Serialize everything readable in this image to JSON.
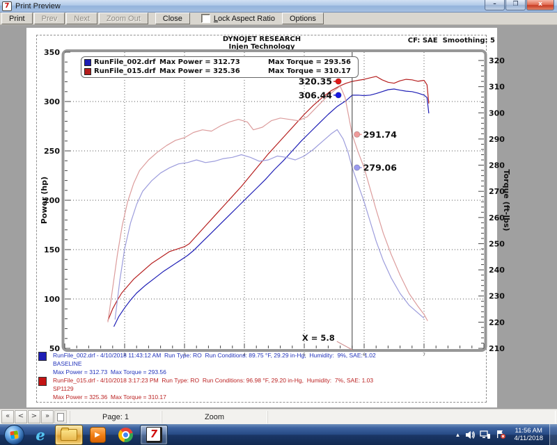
{
  "window": {
    "title": "Print Preview",
    "minimize": "–",
    "restore": "❐",
    "close": "x"
  },
  "toolbar": {
    "buttons": [
      {
        "label": "Print",
        "enabled": true
      },
      {
        "label": "Prev",
        "enabled": false
      },
      {
        "label": "Next",
        "enabled": false
      },
      {
        "label": "Zoom Out",
        "enabled": false
      },
      {
        "label": "Close",
        "enabled": true
      }
    ],
    "lock_label": "Lock Aspect Ratio",
    "lock_checked": false,
    "options_label": "Options"
  },
  "chart_data": {
    "type": "line",
    "title": "DYNOJET RESEARCH",
    "subtitle": "Injen Technology",
    "correction": "CF: SAE  Smoothing: 5",
    "x_axis": {
      "range": [
        1,
        8
      ],
      "gridlines": [
        2,
        3,
        4,
        5,
        6,
        7
      ],
      "tick_labels": [
        "2",
        "3",
        "4",
        "5",
        "6",
        "7"
      ],
      "minor_step": 0.2
    },
    "y_left": {
      "label": "Power (hp)",
      "range": [
        50,
        350
      ],
      "ticks": [
        350,
        300,
        250,
        200,
        150,
        100,
        50
      ],
      "grid": [
        300,
        250,
        200,
        150,
        100
      ],
      "minor_step": 10
    },
    "y_right": {
      "label": "Torque (ft-lbs)",
      "range": [
        210,
        320
      ],
      "ticks": [
        320,
        310,
        300,
        290,
        280,
        270,
        260,
        250,
        240,
        230,
        220,
        210
      ],
      "minor_step": 2
    },
    "legend": [
      {
        "color": "#1d1db5",
        "file": "RunFile_002.drf",
        "power": "Max Power = 312.73",
        "torque": "Max Torque = 293.56"
      },
      {
        "color": "#b51d1d",
        "file": "RunFile_015.drf",
        "power": "Max Power = 325.36",
        "torque": "Max Torque = 310.17"
      }
    ],
    "cursor": {
      "x": 5.8,
      "label": "X = 5.8"
    },
    "markers": [
      {
        "x": 5.57,
        "value": 320.35,
        "axis": "left",
        "color": "#e01818",
        "label": "320.35",
        "side": "left"
      },
      {
        "x": 5.57,
        "value": 306.44,
        "axis": "left",
        "color": "#1818e0",
        "label": "306.44",
        "side": "left"
      },
      {
        "x": 5.88,
        "value": 291.74,
        "axis": "right",
        "color": "#ef9a9a",
        "label": "291.74",
        "side": "right"
      },
      {
        "x": 5.88,
        "value": 279.06,
        "axis": "right",
        "color": "#9a9aef",
        "label": "279.06",
        "side": "right"
      }
    ],
    "series": [
      {
        "name": "RunFile_015 Power",
        "axis": "left",
        "color": "#b51d1d",
        "points": [
          [
            1.72,
            78
          ],
          [
            1.8,
            90
          ],
          [
            1.88,
            99
          ],
          [
            1.95,
            106
          ],
          [
            2.05,
            113
          ],
          [
            2.15,
            120
          ],
          [
            2.3,
            128
          ],
          [
            2.45,
            136
          ],
          [
            2.6,
            142
          ],
          [
            2.75,
            148
          ],
          [
            2.9,
            151
          ],
          [
            3.0,
            153
          ],
          [
            3.08,
            156
          ],
          [
            3.2,
            164
          ],
          [
            3.35,
            174
          ],
          [
            3.5,
            184
          ],
          [
            3.65,
            194
          ],
          [
            3.8,
            204
          ],
          [
            3.95,
            214
          ],
          [
            4.1,
            225
          ],
          [
            4.25,
            236
          ],
          [
            4.4,
            247
          ],
          [
            4.55,
            257
          ],
          [
            4.7,
            267
          ],
          [
            4.85,
            277
          ],
          [
            5.0,
            287
          ],
          [
            5.15,
            296
          ],
          [
            5.3,
            304
          ],
          [
            5.45,
            311
          ],
          [
            5.6,
            316
          ],
          [
            5.7,
            318.5
          ],
          [
            5.8,
            320.35
          ],
          [
            5.9,
            321.5
          ],
          [
            6.0,
            322.5
          ],
          [
            6.1,
            324
          ],
          [
            6.2,
            325.4
          ],
          [
            6.3,
            322
          ],
          [
            6.4,
            319.5
          ],
          [
            6.5,
            318.5
          ],
          [
            6.6,
            321
          ],
          [
            6.7,
            322.5
          ],
          [
            6.8,
            322
          ],
          [
            6.9,
            320.5
          ],
          [
            7.0,
            321.5
          ],
          [
            7.05,
            317
          ],
          [
            7.08,
            298
          ]
        ]
      },
      {
        "name": "RunFile_002 Power",
        "axis": "left",
        "color": "#1d1db5",
        "points": [
          [
            1.82,
            72
          ],
          [
            1.9,
            82
          ],
          [
            2.0,
            91
          ],
          [
            2.1,
            99
          ],
          [
            2.2,
            106
          ],
          [
            2.35,
            114
          ],
          [
            2.5,
            121
          ],
          [
            2.65,
            128
          ],
          [
            2.8,
            134
          ],
          [
            2.95,
            140
          ],
          [
            3.05,
            144
          ],
          [
            3.15,
            149
          ],
          [
            3.3,
            158
          ],
          [
            3.45,
            167
          ],
          [
            3.6,
            176
          ],
          [
            3.75,
            185
          ],
          [
            3.9,
            194
          ],
          [
            4.05,
            203
          ],
          [
            4.2,
            212
          ],
          [
            4.35,
            221
          ],
          [
            4.5,
            231
          ],
          [
            4.65,
            240
          ],
          [
            4.8,
            250
          ],
          [
            4.95,
            260
          ],
          [
            5.1,
            269
          ],
          [
            5.25,
            278
          ],
          [
            5.4,
            287
          ],
          [
            5.55,
            295
          ],
          [
            5.7,
            301
          ],
          [
            5.8,
            306.44
          ],
          [
            5.9,
            306.5
          ],
          [
            6.0,
            306
          ],
          [
            6.1,
            306.5
          ],
          [
            6.2,
            308
          ],
          [
            6.3,
            310
          ],
          [
            6.4,
            312
          ],
          [
            6.5,
            312.7
          ],
          [
            6.6,
            311.5
          ],
          [
            6.7,
            310.5
          ],
          [
            6.8,
            310
          ],
          [
            6.9,
            308.5
          ],
          [
            7.0,
            306.5
          ],
          [
            7.05,
            304
          ],
          [
            7.08,
            288
          ]
        ]
      },
      {
        "name": "RunFile_015 Torque",
        "axis": "right",
        "color": "#dc9c9c",
        "points": [
          [
            1.72,
            220
          ],
          [
            1.8,
            233
          ],
          [
            1.88,
            246
          ],
          [
            1.96,
            257
          ],
          [
            2.05,
            266
          ],
          [
            2.15,
            273
          ],
          [
            2.25,
            278
          ],
          [
            2.4,
            282
          ],
          [
            2.55,
            285
          ],
          [
            2.7,
            287.5
          ],
          [
            2.85,
            289.5
          ],
          [
            3.0,
            290.5
          ],
          [
            3.15,
            292.5
          ],
          [
            3.3,
            293.5
          ],
          [
            3.45,
            293
          ],
          [
            3.6,
            295
          ],
          [
            3.75,
            296.5
          ],
          [
            3.9,
            297.5
          ],
          [
            4.05,
            296.5
          ],
          [
            4.15,
            293.5
          ],
          [
            4.3,
            294.5
          ],
          [
            4.45,
            297
          ],
          [
            4.6,
            298
          ],
          [
            4.75,
            297.5
          ],
          [
            4.9,
            297
          ],
          [
            5.05,
            298.5
          ],
          [
            5.2,
            302
          ],
          [
            5.35,
            305.5
          ],
          [
            5.5,
            308.5
          ],
          [
            5.6,
            310.2
          ],
          [
            5.68,
            306
          ],
          [
            5.74,
            299
          ],
          [
            5.8,
            291.74
          ],
          [
            5.9,
            285
          ],
          [
            6.0,
            279
          ],
          [
            6.1,
            271
          ],
          [
            6.2,
            263
          ],
          [
            6.32,
            254
          ],
          [
            6.45,
            246
          ],
          [
            6.6,
            238
          ],
          [
            6.75,
            231
          ],
          [
            6.9,
            226
          ],
          [
            7.0,
            223
          ],
          [
            7.06,
            220.5
          ]
        ]
      },
      {
        "name": "RunFile_002 Torque",
        "axis": "right",
        "color": "#9c9cdc",
        "points": [
          [
            1.84,
            221
          ],
          [
            1.92,
            236
          ],
          [
            2.0,
            248
          ],
          [
            2.1,
            258
          ],
          [
            2.2,
            265
          ],
          [
            2.3,
            270
          ],
          [
            2.45,
            274
          ],
          [
            2.6,
            277
          ],
          [
            2.75,
            279
          ],
          [
            2.9,
            280.5
          ],
          [
            3.05,
            281
          ],
          [
            3.2,
            282
          ],
          [
            3.35,
            281
          ],
          [
            3.5,
            281.5
          ],
          [
            3.65,
            282.5
          ],
          [
            3.8,
            283
          ],
          [
            3.95,
            284
          ],
          [
            4.1,
            283
          ],
          [
            4.25,
            281.5
          ],
          [
            4.4,
            282
          ],
          [
            4.55,
            283.5
          ],
          [
            4.7,
            283
          ],
          [
            4.85,
            282
          ],
          [
            5.0,
            283.5
          ],
          [
            5.15,
            286
          ],
          [
            5.3,
            289
          ],
          [
            5.45,
            292
          ],
          [
            5.55,
            293.6
          ],
          [
            5.65,
            290
          ],
          [
            5.73,
            285
          ],
          [
            5.8,
            279.06
          ],
          [
            5.9,
            272.5
          ],
          [
            6.0,
            266
          ],
          [
            6.1,
            258.5
          ],
          [
            6.2,
            251
          ],
          [
            6.32,
            243.5
          ],
          [
            6.45,
            237
          ],
          [
            6.6,
            231
          ],
          [
            6.75,
            226.5
          ],
          [
            6.9,
            223.5
          ],
          [
            7.0,
            221.5
          ]
        ]
      }
    ]
  },
  "annotations": [
    {
      "color": "#1d1db5",
      "text_color": "#2233bb",
      "line1": "RunFile_002.drf - 4/10/2018 11:43:12 AM  Run Type: RO  Run Conditions: 89.75 °F, 29.29 in-Hg,  Humidity:  9%, SAE: 1.02",
      "line2": "BASELINE",
      "line3": "Max Power = 312.73  Max Torque = 293.56"
    },
    {
      "color": "#c41414",
      "text_color": "#bb2222",
      "line1": "RunFile_015.drf - 4/10/2018 3:17:23 PM  Run Type: RO  Run Conditions: 96.98 °F, 29.20 in-Hg,  Humidity:  7%, SAE: 1.03",
      "line2": "SP1129",
      "line3": "Max Power = 325.36  Max Torque = 310.17"
    }
  ],
  "statusbar": {
    "nav": [
      "«",
      "<",
      ">",
      "»"
    ],
    "page_label": "Page: 1",
    "zoom_label": "Zoom"
  },
  "taskbar": {
    "ie_glyph": "e",
    "wmp_glyph": "▶",
    "dynojet_glyph": "7",
    "tray_expand_glyph": "▲",
    "clock_time": "11:56 AM",
    "clock_date": "4/11/2018"
  }
}
